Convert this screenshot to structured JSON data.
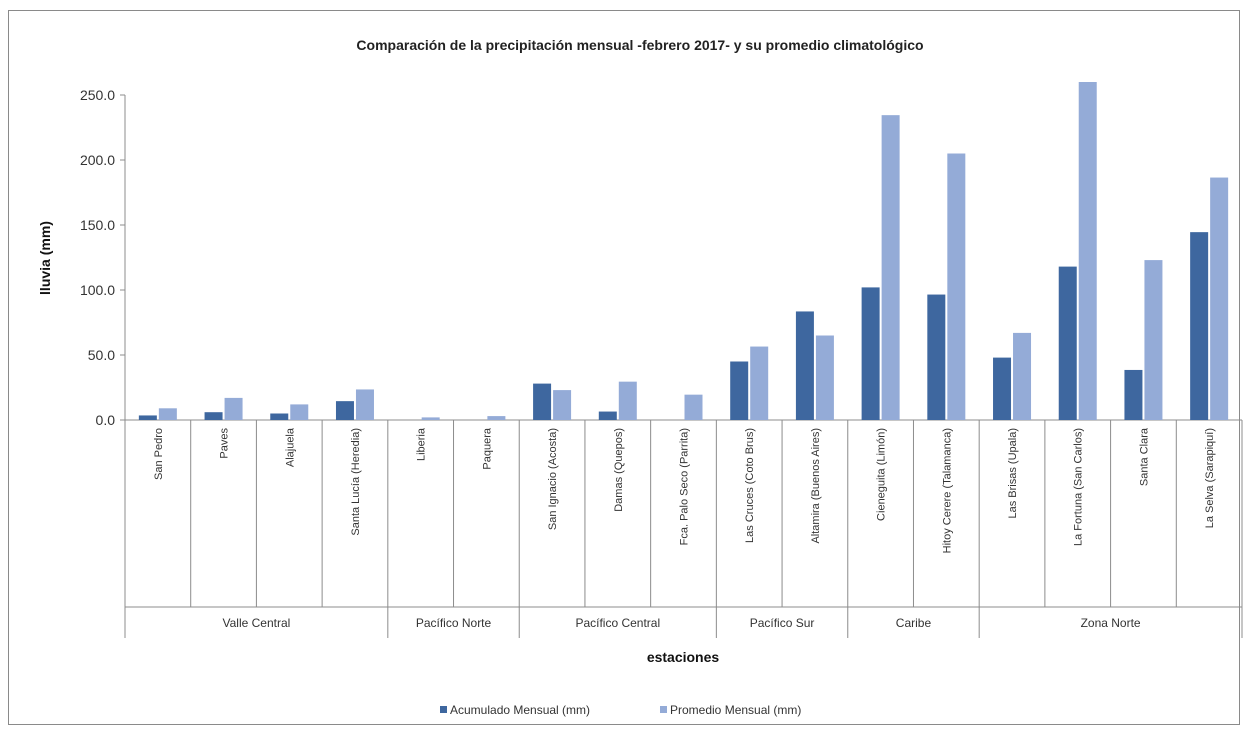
{
  "chart_data": {
    "type": "bar",
    "title": "Comparación de la precipitación mensual -febrero 2017-  y su promedio climatológico",
    "xlabel": "estaciones",
    "ylabel": "lluvia (mm)",
    "ylim": [
      0,
      250
    ],
    "yticks": [
      "0.0",
      "50.0",
      "100.0",
      "150.0",
      "200.0",
      "250.0"
    ],
    "categories": [
      "San Pedro",
      "Paves",
      "Alajuela",
      "Santa Lucía (Heredia)",
      "Liberia",
      "Paquera",
      "San Ignacio (Acosta)",
      "Damas (Quepos)",
      "Fca. Palo Seco (Parrita)",
      "Las Cruces (Coto Brus)",
      "Altamira (Buenos Aires)",
      "Cieneguita (Limón)",
      "Hitoy Cerere (Talamanca)",
      "Las Brisas (Upala)",
      "La Fortuna (San Carlos)",
      "Santa Clara",
      "La Selva (Sarapiquí)"
    ],
    "groups": [
      {
        "name": "Valle Central",
        "count": 4
      },
      {
        "name": "Pacífico Norte",
        "count": 2
      },
      {
        "name": "Pacífico Central",
        "count": 3
      },
      {
        "name": "Pacífico Sur",
        "count": 2
      },
      {
        "name": "Caribe",
        "count": 2
      },
      {
        "name": "Zona Norte",
        "count": 4
      }
    ],
    "series": [
      {
        "name": "Acumulado Mensual (mm)",
        "color": "#3e679f",
        "values": [
          3.5,
          6,
          5,
          14.5,
          0,
          0,
          28,
          6.5,
          0,
          45,
          83.5,
          102,
          96.5,
          48,
          118,
          38.5,
          144.5
        ]
      },
      {
        "name": "Promedio Mensual (mm)",
        "color": "#94abd7",
        "values": [
          9,
          17,
          12,
          23.5,
          2,
          3,
          23,
          29.5,
          19.5,
          56.5,
          65,
          234.5,
          205,
          67,
          260,
          123,
          186.5
        ]
      }
    ],
    "grid": false,
    "legend": "bottom"
  }
}
